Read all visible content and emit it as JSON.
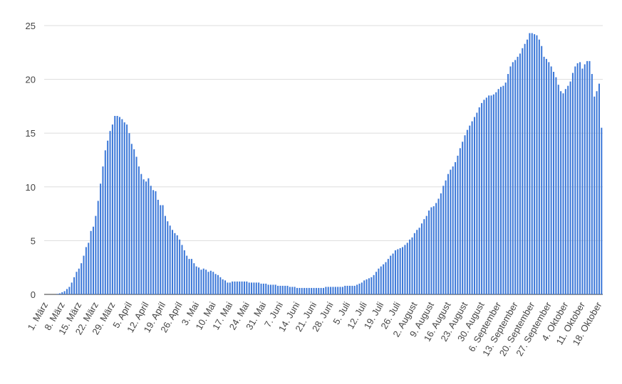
{
  "chart_data": {
    "type": "bar",
    "color": "#3c78d8",
    "grid": true,
    "ylim": [
      0,
      25
    ],
    "yticks": [
      0,
      5,
      10,
      15,
      20,
      25
    ],
    "categories": [
      "1. März",
      null,
      null,
      null,
      null,
      null,
      null,
      "8. März",
      null,
      null,
      null,
      null,
      null,
      null,
      "15. März",
      null,
      null,
      null,
      null,
      null,
      null,
      "22. März",
      null,
      null,
      null,
      null,
      null,
      null,
      "29. März",
      null,
      null,
      null,
      null,
      null,
      null,
      "5. April",
      null,
      null,
      null,
      null,
      null,
      null,
      "12. April",
      null,
      null,
      null,
      null,
      null,
      null,
      "19. April",
      null,
      null,
      null,
      null,
      null,
      null,
      "26. April",
      null,
      null,
      null,
      null,
      null,
      null,
      "3. Mai",
      null,
      null,
      null,
      null,
      null,
      null,
      "10. Mai",
      null,
      null,
      null,
      null,
      null,
      null,
      "17. Mai",
      null,
      null,
      null,
      null,
      null,
      null,
      "24. Mai",
      null,
      null,
      null,
      null,
      null,
      null,
      "31. Mai",
      null,
      null,
      null,
      null,
      null,
      null,
      "7. Juni",
      null,
      null,
      null,
      null,
      null,
      null,
      "14. Juni",
      null,
      null,
      null,
      null,
      null,
      null,
      "21. Juni",
      null,
      null,
      null,
      null,
      null,
      null,
      "28. Juni",
      null,
      null,
      null,
      null,
      null,
      null,
      "5. Juli",
      null,
      null,
      null,
      null,
      null,
      null,
      "12. Juli",
      null,
      null,
      null,
      null,
      null,
      null,
      "19. Juli",
      null,
      null,
      null,
      null,
      null,
      null,
      "26. Juli",
      null,
      null,
      null,
      null,
      null,
      null,
      "2. August",
      null,
      null,
      null,
      null,
      null,
      null,
      "9. August",
      null,
      null,
      null,
      null,
      null,
      null,
      "16. August",
      null,
      null,
      null,
      null,
      null,
      null,
      "23. August",
      null,
      null,
      null,
      null,
      null,
      null,
      "30. August",
      null,
      null,
      null,
      null,
      null,
      null,
      "6. September",
      null,
      null,
      null,
      null,
      null,
      null,
      "13. September",
      null,
      null,
      null,
      null,
      null,
      null,
      "20. September",
      null,
      null,
      null,
      null,
      null,
      null,
      "27. September",
      null,
      null,
      null,
      null,
      null,
      null,
      "4. Oktober",
      null,
      null,
      null,
      null,
      null,
      null,
      "11. Oktober",
      null,
      null,
      null,
      null,
      null,
      null,
      "18. Oktober",
      null
    ],
    "values": [
      0,
      0,
      0,
      0,
      0,
      0.05,
      0.1,
      0.2,
      0.3,
      0.5,
      0.7,
      1.1,
      1.6,
      2.1,
      2.4,
      2.9,
      3.6,
      4.4,
      4.8,
      5.9,
      6.3,
      7.3,
      8.7,
      10.3,
      11.9,
      13.4,
      14.3,
      15.2,
      15.8,
      16.6,
      16.6,
      16.5,
      16.3,
      16.0,
      15.8,
      15.0,
      14.0,
      13.5,
      12.8,
      11.9,
      11.2,
      10.7,
      10.5,
      10.8,
      10.1,
      9.7,
      9.6,
      8.8,
      8.3,
      8.3,
      7.3,
      6.8,
      6.4,
      6.0,
      5.7,
      5.5,
      5.1,
      4.6,
      4.1,
      3.6,
      3.3,
      3.3,
      2.9,
      2.6,
      2.5,
      2.3,
      2.4,
      2.3,
      2.1,
      2.2,
      2.1,
      1.9,
      1.8,
      1.6,
      1.4,
      1.3,
      1.1,
      1.1,
      1.2,
      1.2,
      1.2,
      1.2,
      1.2,
      1.2,
      1.2,
      1.1,
      1.1,
      1.1,
      1.1,
      1.1,
      1.0,
      1.0,
      1.0,
      0.9,
      0.9,
      0.9,
      0.9,
      0.8,
      0.8,
      0.8,
      0.8,
      0.8,
      0.7,
      0.7,
      0.7,
      0.6,
      0.6,
      0.6,
      0.6,
      0.6,
      0.6,
      0.6,
      0.6,
      0.6,
      0.6,
      0.6,
      0.6,
      0.7,
      0.7,
      0.7,
      0.7,
      0.7,
      0.7,
      0.7,
      0.7,
      0.8,
      0.8,
      0.8,
      0.8,
      0.8,
      0.9,
      1.0,
      1.1,
      1.3,
      1.4,
      1.5,
      1.6,
      1.8,
      2.1,
      2.4,
      2.6,
      2.8,
      3.0,
      3.3,
      3.6,
      3.8,
      4.1,
      4.2,
      4.3,
      4.4,
      4.6,
      4.8,
      5.1,
      5.3,
      5.7,
      6.0,
      6.2,
      6.6,
      7.0,
      7.3,
      7.8,
      8.1,
      8.2,
      8.5,
      8.9,
      9.4,
      10.1,
      10.6,
      11.2,
      11.6,
      11.9,
      12.3,
      12.9,
      13.6,
      14.2,
      14.8,
      15.3,
      15.7,
      16.1,
      16.5,
      16.9,
      17.4,
      17.8,
      18.1,
      18.3,
      18.5,
      18.5,
      18.6,
      18.8,
      19.1,
      19.3,
      19.4,
      19.7,
      20.5,
      21.2,
      21.6,
      21.8,
      22.1,
      22.4,
      22.9,
      23.3,
      23.7,
      24.3,
      24.3,
      24.2,
      24.1,
      23.7,
      23.1,
      22.1,
      21.9,
      21.6,
      21.2,
      20.7,
      20.2,
      19.5,
      18.9,
      18.7,
      19.1,
      19.4,
      19.8,
      20.6,
      21.2,
      21.5,
      21.6,
      21.0,
      21.4,
      21.7,
      21.7,
      20.5,
      18.4,
      18.9,
      19.6,
      15.5
    ]
  }
}
